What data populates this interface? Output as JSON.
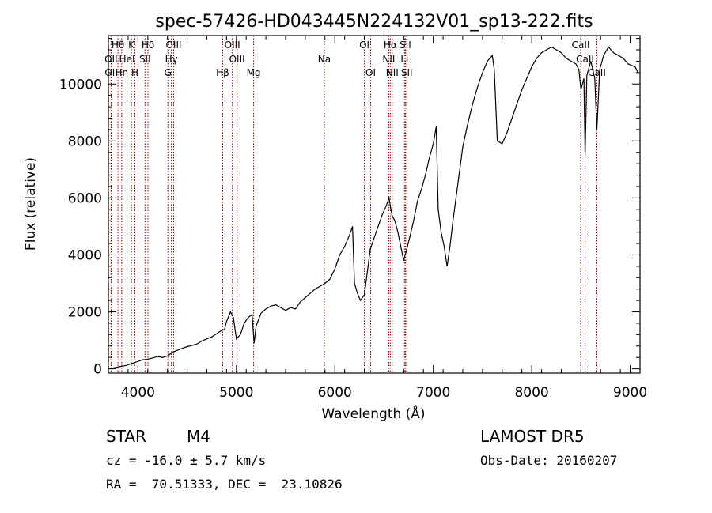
{
  "chart_data": {
    "type": "line",
    "title": "spec-57426-HD043445N224132V01_sp13-222.fits",
    "xlabel": "Wavelength (Å)",
    "ylabel": "Flux (relative)",
    "xlim": [
      3700,
      9100
    ],
    "ylim": [
      -150,
      11700
    ],
    "x_ticks": [
      4000,
      5000,
      6000,
      7000,
      8000,
      9000
    ],
    "y_ticks": [
      0,
      2000,
      4000,
      6000,
      8000,
      10000
    ],
    "grid": false,
    "series": [
      {
        "points": [
          [
            3700,
            0
          ],
          [
            3760,
            40
          ],
          [
            3820,
            80
          ],
          [
            3880,
            120
          ],
          [
            3950,
            200
          ],
          [
            4000,
            260
          ],
          [
            4050,
            320
          ],
          [
            4100,
            340
          ],
          [
            4150,
            380
          ],
          [
            4200,
            430
          ],
          [
            4250,
            400
          ],
          [
            4300,
            450
          ],
          [
            4350,
            580
          ],
          [
            4400,
            650
          ],
          [
            4450,
            720
          ],
          [
            4500,
            780
          ],
          [
            4550,
            820
          ],
          [
            4600,
            870
          ],
          [
            4650,
            980
          ],
          [
            4700,
            1050
          ],
          [
            4750,
            1120
          ],
          [
            4800,
            1230
          ],
          [
            4850,
            1350
          ],
          [
            4880,
            1380
          ],
          [
            4900,
            1650
          ],
          [
            4940,
            2000
          ],
          [
            4970,
            1800
          ],
          [
            5000,
            1050
          ],
          [
            5040,
            1200
          ],
          [
            5080,
            1600
          ],
          [
            5120,
            1800
          ],
          [
            5160,
            1900
          ],
          [
            5180,
            900
          ],
          [
            5200,
            1500
          ],
          [
            5250,
            1950
          ],
          [
            5300,
            2100
          ],
          [
            5350,
            2200
          ],
          [
            5400,
            2250
          ],
          [
            5450,
            2150
          ],
          [
            5500,
            2050
          ],
          [
            5550,
            2150
          ],
          [
            5600,
            2100
          ],
          [
            5650,
            2350
          ],
          [
            5700,
            2500
          ],
          [
            5750,
            2650
          ],
          [
            5800,
            2800
          ],
          [
            5850,
            2900
          ],
          [
            5900,
            3000
          ],
          [
            5950,
            3150
          ],
          [
            6000,
            3500
          ],
          [
            6050,
            4000
          ],
          [
            6100,
            4300
          ],
          [
            6150,
            4700
          ],
          [
            6180,
            5000
          ],
          [
            6200,
            3000
          ],
          [
            6230,
            2650
          ],
          [
            6260,
            2400
          ],
          [
            6300,
            2600
          ],
          [
            6330,
            3400
          ],
          [
            6360,
            4200
          ],
          [
            6400,
            4600
          ],
          [
            6440,
            5000
          ],
          [
            6480,
            5400
          ],
          [
            6520,
            5700
          ],
          [
            6550,
            6000
          ],
          [
            6580,
            5400
          ],
          [
            6610,
            5200
          ],
          [
            6640,
            4800
          ],
          [
            6670,
            4300
          ],
          [
            6700,
            3800
          ],
          [
            6730,
            4200
          ],
          [
            6760,
            4600
          ],
          [
            6800,
            5200
          ],
          [
            6840,
            5900
          ],
          [
            6880,
            6300
          ],
          [
            6920,
            6800
          ],
          [
            6960,
            7400
          ],
          [
            7000,
            7900
          ],
          [
            7030,
            8500
          ],
          [
            7050,
            5600
          ],
          [
            7080,
            4800
          ],
          [
            7110,
            4300
          ],
          [
            7140,
            3600
          ],
          [
            7170,
            4300
          ],
          [
            7200,
            5200
          ],
          [
            7250,
            6500
          ],
          [
            7300,
            7800
          ],
          [
            7350,
            8600
          ],
          [
            7400,
            9300
          ],
          [
            7450,
            9900
          ],
          [
            7500,
            10400
          ],
          [
            7550,
            10800
          ],
          [
            7600,
            11000
          ],
          [
            7620,
            10500
          ],
          [
            7650,
            8000
          ],
          [
            7700,
            7900
          ],
          [
            7750,
            8300
          ],
          [
            7800,
            8800
          ],
          [
            7850,
            9300
          ],
          [
            7900,
            9800
          ],
          [
            7950,
            10200
          ],
          [
            8000,
            10600
          ],
          [
            8050,
            10900
          ],
          [
            8100,
            11100
          ],
          [
            8150,
            11200
          ],
          [
            8200,
            11300
          ],
          [
            8250,
            11200
          ],
          [
            8300,
            11100
          ],
          [
            8350,
            10900
          ],
          [
            8400,
            10800
          ],
          [
            8450,
            10700
          ],
          [
            8480,
            10500
          ],
          [
            8500,
            9800
          ],
          [
            8530,
            10200
          ],
          [
            8542,
            7500
          ],
          [
            8560,
            10300
          ],
          [
            8600,
            10800
          ],
          [
            8640,
            10200
          ],
          [
            8662,
            8400
          ],
          [
            8690,
            10500
          ],
          [
            8730,
            11000
          ],
          [
            8780,
            11300
          ],
          [
            8830,
            11100
          ],
          [
            8880,
            11000
          ],
          [
            8930,
            10900
          ],
          [
            8980,
            10700
          ],
          [
            9050,
            10600
          ],
          [
            9080,
            10400
          ]
        ]
      }
    ],
    "lines": [
      {
        "label": "Hθ",
        "x": 3797,
        "row": 0
      },
      {
        "label": "OII",
        "x": 3727,
        "row": 1
      },
      {
        "label": "OII",
        "x": 3729,
        "row": 2
      },
      {
        "label": "HeI",
        "x": 3889,
        "row": 1
      },
      {
        "label": "Hη",
        "x": 3835,
        "row": 2
      },
      {
        "label": "K",
        "x": 3934,
        "row": 0
      },
      {
        "label": "H",
        "x": 3969,
        "row": 2
      },
      {
        "label": "SII",
        "x": 4072,
        "row": 1
      },
      {
        "label": "Hδ",
        "x": 4102,
        "row": 0
      },
      {
        "label": "OIII",
        "x": 4363,
        "row": 0
      },
      {
        "label": "Hγ",
        "x": 4340,
        "row": 1
      },
      {
        "label": "G",
        "x": 4305,
        "row": 2
      },
      {
        "label": "OIII",
        "x": 4959,
        "row": 0
      },
      {
        "label": "OIII",
        "x": 5007,
        "row": 1
      },
      {
        "label": "Hβ",
        "x": 4861,
        "row": 2
      },
      {
        "label": "Mg",
        "x": 5175,
        "row": 2
      },
      {
        "label": "Na",
        "x": 5893,
        "row": 1
      },
      {
        "label": "OI",
        "x": 6300,
        "row": 0
      },
      {
        "label": "OI",
        "x": 6364,
        "row": 2
      },
      {
        "label": "Hα",
        "x": 6563,
        "row": 0
      },
      {
        "label": "SII",
        "x": 6717,
        "row": 0
      },
      {
        "label": "NII",
        "x": 6548,
        "row": 1
      },
      {
        "label": "Li",
        "x": 6708,
        "row": 1
      },
      {
        "label": "NII",
        "x": 6583,
        "row": 2
      },
      {
        "label": "SII",
        "x": 6731,
        "row": 2
      },
      {
        "label": "CaII",
        "x": 8498,
        "row": 0
      },
      {
        "label": "CaII",
        "x": 8542,
        "row": 1
      },
      {
        "label": "CaII",
        "x": 8662,
        "row": 2
      }
    ]
  },
  "info": {
    "class": "STAR",
    "subclass": "M4",
    "survey": "LAMOST DR5",
    "cz": "cz = -16.0 ± 5.7 km/s",
    "obs_date": "Obs-Date: 20160207",
    "coords": "RA =  70.51333, DEC =  23.10826"
  },
  "colors": {
    "line_marker": "#8b0000",
    "spectrum": "#000000",
    "background": "#ffffff"
  }
}
